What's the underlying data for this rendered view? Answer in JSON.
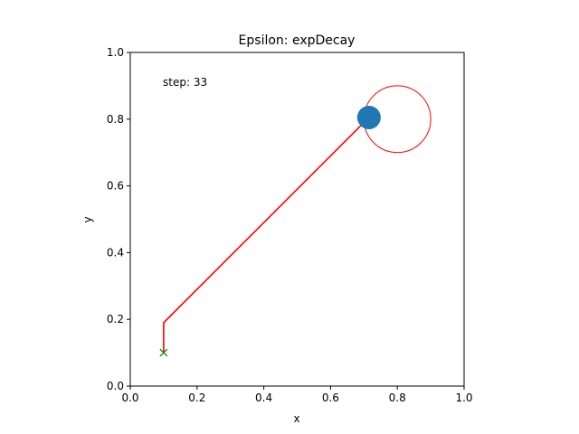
{
  "chart_data": {
    "type": "line",
    "title": "Epsilon: expDecay",
    "xlabel": "x",
    "ylabel": "y",
    "xlim": [
      0.0,
      1.0
    ],
    "ylim": [
      0.0,
      1.0
    ],
    "xticks": [
      "0.0",
      "0.2",
      "0.4",
      "0.6",
      "0.8",
      "1.0"
    ],
    "yticks": [
      "0.0",
      "0.2",
      "0.4",
      "0.6",
      "0.8",
      "1.0"
    ],
    "grid": false,
    "annotation": "step: 33",
    "trajectory": {
      "color": "#ff0000",
      "x": [
        0.1,
        0.1,
        0.715
      ],
      "y": [
        0.1,
        0.19,
        0.805
      ]
    },
    "start_marker": {
      "x": 0.1,
      "y": 0.1,
      "color": "#008000",
      "symbol": "x"
    },
    "agent": {
      "x": 0.715,
      "y": 0.805,
      "color": "#1f77b4"
    },
    "goal": {
      "x": 0.8,
      "y": 0.8,
      "radius": 0.1,
      "color": "#ff0000"
    }
  }
}
